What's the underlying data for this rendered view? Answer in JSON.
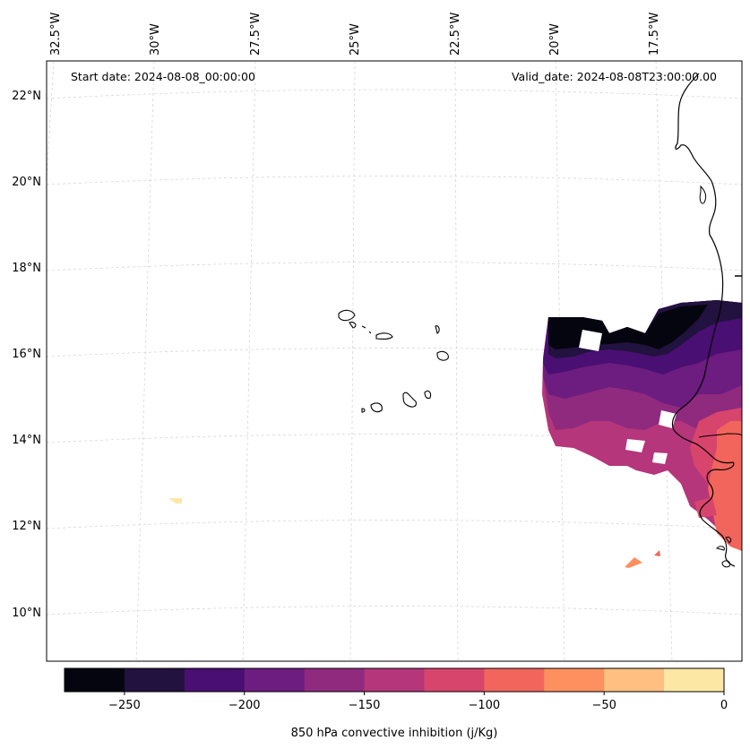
{
  "header": {
    "start_date": "Start date: 2024-08-08_00:00:00",
    "valid_date": "Valid_date: 2024-08-08T23:00:00.00"
  },
  "lon_labels": [
    "32.5°W",
    "30°W",
    "27.5°W",
    "25°W",
    "22.5°W",
    "20°W",
    "17.5°W"
  ],
  "lat_labels": [
    "22°N",
    "20°N",
    "18°N",
    "16°N",
    "14°N",
    "12°N",
    "10°N"
  ],
  "colorbar": {
    "label": "850 hPa convective inhibition (j/Kg)",
    "ticks": [
      "−250",
      "−200",
      "−150",
      "−100",
      "−50",
      "0"
    ],
    "tick_values": [
      -250,
      -200,
      -150,
      -100,
      -50,
      0
    ],
    "range": [
      -275,
      0
    ],
    "levels": [
      -275,
      -250,
      -225,
      -200,
      -175,
      -150,
      -125,
      -100,
      -75,
      -50,
      -25,
      0
    ],
    "colors": [
      "#05050f",
      "#22123f",
      "#4a0f72",
      "#6d1c80",
      "#902a7f",
      "#b5367a",
      "#d8456c",
      "#f2655c",
      "#fe9060",
      "#febf80",
      "#fde7a5"
    ]
  }
}
